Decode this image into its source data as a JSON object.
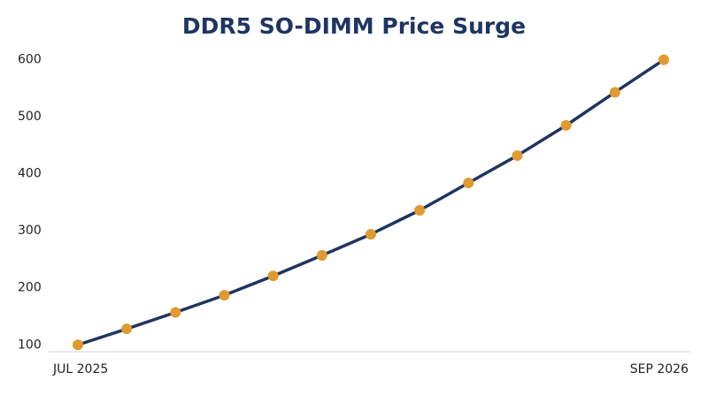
{
  "chart_data": {
    "type": "line",
    "title": "DDR5 SO-DIMM Price Surge",
    "categories": [
      "JUL 2025",
      null,
      null,
      null,
      null,
      null,
      null,
      null,
      null,
      null,
      null,
      null,
      "SEP 2026"
    ],
    "series": [
      {
        "values": [
          100,
          128,
          157,
          187,
          221,
          257,
          294,
          336,
          384,
          432,
          485,
          543,
          600
        ],
        "color": "#1f3560",
        "marker_color": "#e09a30"
      }
    ],
    "ylim": [
      88,
      615
    ],
    "yticks": [
      100,
      200,
      300,
      400,
      500,
      600
    ],
    "grid": false
  }
}
